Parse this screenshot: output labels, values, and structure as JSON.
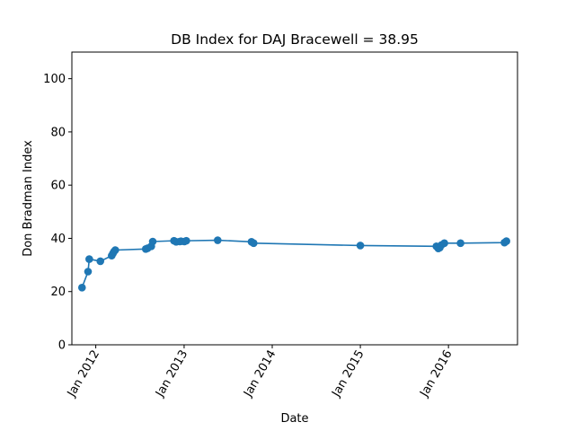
{
  "chart_data": {
    "type": "line",
    "title": "DB Index for DAJ Bracewell = 38.95",
    "xlabel": "Date",
    "ylabel": "Don Bradman Index",
    "x_axis_type": "date",
    "xlim": [
      "2011-09-24",
      "2016-10-13"
    ],
    "ylim": [
      0,
      110
    ],
    "yticks": [
      0,
      20,
      40,
      60,
      80,
      100
    ],
    "xticks": [
      {
        "date": "2012-01-01",
        "label": "Jan 2012"
      },
      {
        "date": "2013-01-01",
        "label": "Jan 2013"
      },
      {
        "date": "2014-01-01",
        "label": "Jan 2014"
      },
      {
        "date": "2015-01-01",
        "label": "Jan 2015"
      },
      {
        "date": "2016-01-01",
        "label": "Jan 2016"
      }
    ],
    "grid": false,
    "legend": "none",
    "color": "#1f77b4",
    "marker": "circle",
    "series": [
      {
        "x": [
          "2011-11-05",
          "2011-11-30",
          "2011-12-05",
          "2012-01-20",
          "2012-03-07",
          "2012-03-12",
          "2012-03-17",
          "2012-03-22",
          "2012-07-26",
          "2012-08-03",
          "2012-08-18",
          "2012-08-24",
          "2012-11-20",
          "2012-11-29",
          "2012-12-14",
          "2012-12-19",
          "2013-01-02",
          "2013-01-10",
          "2013-05-20",
          "2013-10-07",
          "2013-10-16",
          "2015-01-01",
          "2015-11-12",
          "2015-11-20",
          "2015-11-26",
          "2015-12-03",
          "2015-12-15",
          "2016-02-20",
          "2016-08-20",
          "2016-08-28"
        ],
        "y": [
          21.5,
          27.5,
          32.2,
          31.4,
          33.5,
          34.3,
          35.1,
          35.6,
          36.0,
          36.3,
          37.0,
          38.8,
          39.1,
          38.7,
          38.8,
          38.9,
          38.8,
          39.1,
          39.3,
          38.7,
          38.2,
          37.3,
          37.0,
          36.2,
          36.5,
          37.5,
          38.2,
          38.2,
          38.4,
          38.95
        ]
      }
    ]
  }
}
